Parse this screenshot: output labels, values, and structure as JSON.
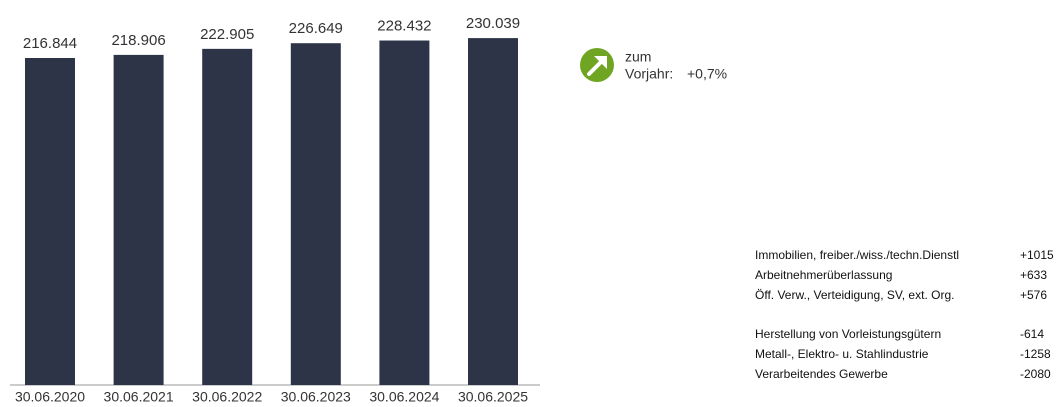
{
  "chart_data": {
    "type": "bar",
    "categories": [
      "30.06.2020",
      "30.06.2021",
      "30.06.2022",
      "30.06.2023",
      "30.06.2024",
      "30.06.2025"
    ],
    "values": [
      216844,
      218906,
      222905,
      226649,
      228432,
      230039
    ],
    "value_labels": [
      "216.844",
      "218.906",
      "222.905",
      "226.649",
      "228.432",
      "230.039"
    ],
    "color": "#2d3447",
    "ylim": [
      0,
      250000
    ]
  },
  "annotation": {
    "line1": "zum",
    "line2": "Vorjahr:",
    "change": "+0,7%"
  },
  "table": {
    "groups": [
      {
        "rows": [
          [
            "Immobilien, freiber./wiss./techn.Dienstl",
            "+1015"
          ],
          [
            "Arbeitnehmerüberlassung",
            "+633"
          ],
          [
            "Öff. Verw., Verteidigung, SV, ext. Org.",
            "+576"
          ]
        ]
      },
      {
        "rows": [
          [
            "Herstellung von Vorleistungsgütern",
            "-614"
          ],
          [
            "Metall-, Elektro- u. Stahlindustrie",
            "-1258"
          ],
          [
            "Verarbeitendes Gewerbe",
            "-2080"
          ]
        ]
      }
    ]
  }
}
